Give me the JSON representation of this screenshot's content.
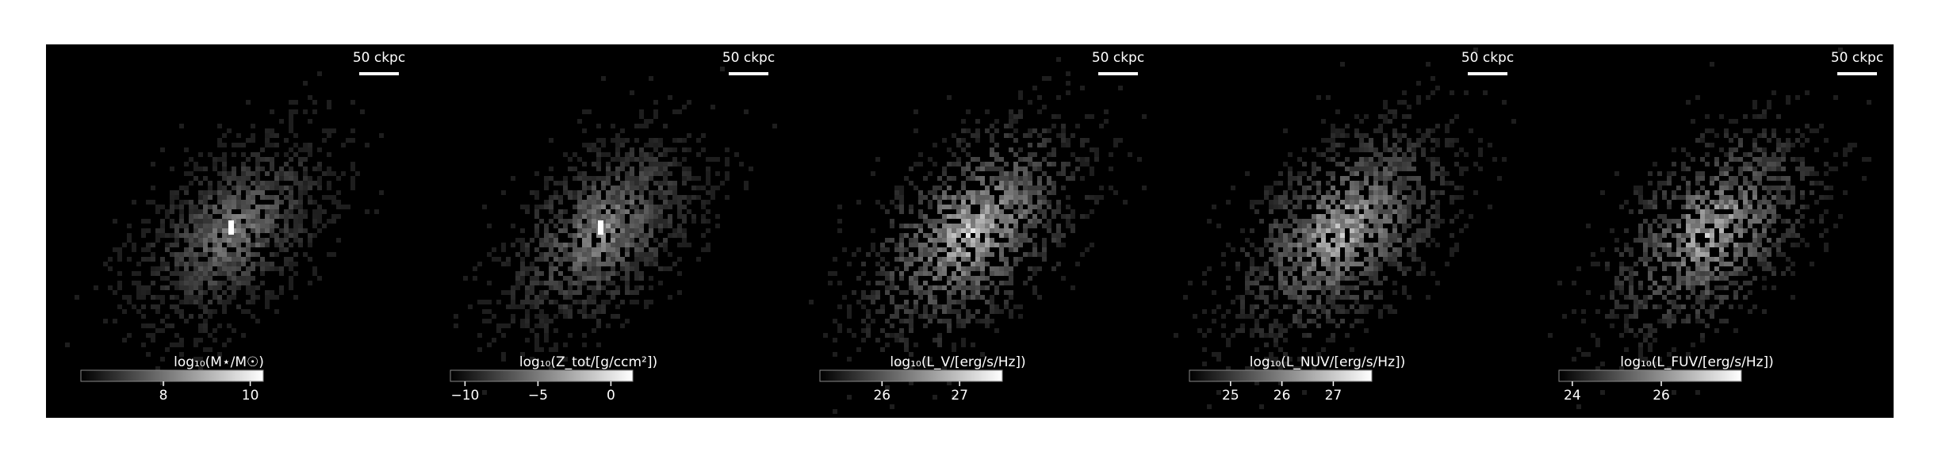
{
  "chart_data": [
    {
      "type": "image",
      "scale_label": "50 ckpc",
      "colorbar_label": "log₁₀(M⋆/M☉)",
      "clim": [
        6.1,
        10.3
      ],
      "cticks": [
        8,
        10
      ],
      "brightness": 0.55
    },
    {
      "type": "image",
      "scale_label": "50 ckpc",
      "colorbar_label": "log₁₀(Z_tot/[g/ccm²])",
      "clim": [
        -11,
        1.5
      ],
      "cticks": [
        {
          "value": -10,
          "label": "−10"
        },
        {
          "value": -5,
          "label": "−5"
        },
        0
      ],
      "brightness": 0.6
    },
    {
      "type": "image",
      "scale_label": "50 ckpc",
      "colorbar_label": "log₁₀(L_V/[erg/s/Hz])",
      "clim": [
        25.2,
        27.55
      ],
      "cticks": [
        26,
        27
      ],
      "brightness": 0.85
    },
    {
      "type": "image",
      "scale_label": "50 ckpc",
      "colorbar_label": "log₁₀(L_NUV/[erg/s/Hz])",
      "clim": [
        24.2,
        27.75
      ],
      "cticks": [
        25,
        26,
        27
      ],
      "brightness": 0.8
    },
    {
      "type": "image",
      "scale_label": "50 ckpc",
      "colorbar_label": "log₁₀(L_FUV/[erg/s/Hz])",
      "clim": [
        23.7,
        27.8
      ],
      "cticks": [
        24,
        26
      ],
      "brightness": 0.78
    }
  ]
}
